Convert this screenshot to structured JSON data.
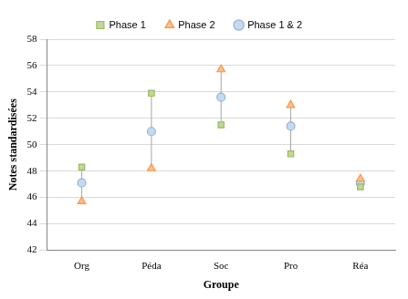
{
  "chart_data": {
    "type": "scatter",
    "x_label": "Groupe",
    "y_label": "Notes standardisées",
    "categories": [
      "Org",
      "Péda",
      "Soc",
      "Pro",
      "Réa"
    ],
    "series": [
      {
        "name": "Phase 1",
        "color": "#9bbb59",
        "marker": "square",
        "values": [
          48.3,
          53.9,
          51.5,
          49.3,
          46.8
        ]
      },
      {
        "name": "Phase 2",
        "color": "#f79646",
        "marker": "triangle",
        "values": [
          45.7,
          48.2,
          55.7,
          53.0,
          47.4
        ]
      },
      {
        "name": "Phase 1 & 2",
        "color": "#95b3d7",
        "marker": "circle",
        "values": [
          47.1,
          51.0,
          53.6,
          51.4,
          47.1
        ]
      }
    ],
    "ylim": [
      42,
      58
    ],
    "yticks": [
      42,
      44,
      46,
      48,
      50,
      52,
      54,
      56,
      58
    ],
    "grid": true,
    "legend": "top"
  }
}
